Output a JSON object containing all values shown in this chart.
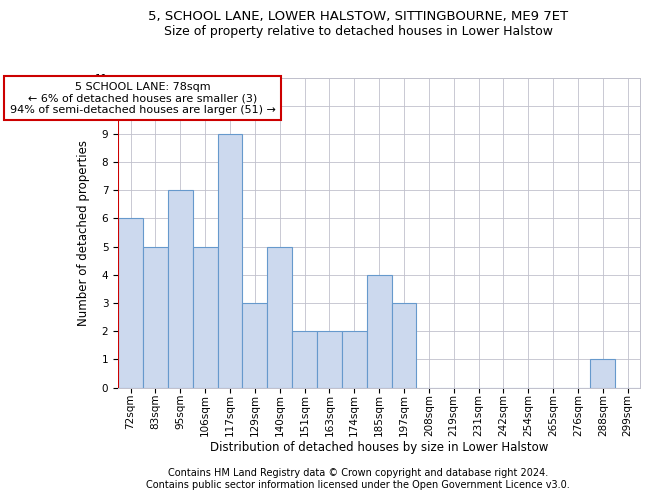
{
  "title1": "5, SCHOOL LANE, LOWER HALSTOW, SITTINGBOURNE, ME9 7ET",
  "title2": "Size of property relative to detached houses in Lower Halstow",
  "xlabel": "Distribution of detached houses by size in Lower Halstow",
  "ylabel": "Number of detached properties",
  "categories": [
    "72sqm",
    "83sqm",
    "95sqm",
    "106sqm",
    "117sqm",
    "129sqm",
    "140sqm",
    "151sqm",
    "163sqm",
    "174sqm",
    "185sqm",
    "197sqm",
    "208sqm",
    "219sqm",
    "231sqm",
    "242sqm",
    "254sqm",
    "265sqm",
    "276sqm",
    "288sqm",
    "299sqm"
  ],
  "values": [
    6,
    5,
    7,
    5,
    9,
    3,
    5,
    2,
    2,
    2,
    4,
    3,
    0,
    0,
    0,
    0,
    0,
    0,
    0,
    1,
    0
  ],
  "bar_color": "#ccd9ee",
  "bar_edge_color": "#6699cc",
  "highlight_line_color": "#cc0000",
  "annotation_line1": "5 SCHOOL LANE: 78sqm",
  "annotation_line2": "← 6% of detached houses are smaller (3)",
  "annotation_line3": "94% of semi-detached houses are larger (51) →",
  "annotation_box_color": "#cc0000",
  "ylim": [
    0,
    11
  ],
  "yticks": [
    0,
    1,
    2,
    3,
    4,
    5,
    6,
    7,
    8,
    9,
    10,
    11
  ],
  "grid_color": "#c0c0cc",
  "background_color": "#ffffff",
  "footnote1": "Contains HM Land Registry data © Crown copyright and database right 2024.",
  "footnote2": "Contains public sector information licensed under the Open Government Licence v3.0.",
  "title1_fontsize": 9.5,
  "title2_fontsize": 9,
  "xlabel_fontsize": 8.5,
  "ylabel_fontsize": 8.5,
  "tick_fontsize": 7.5,
  "annotation_fontsize": 8,
  "footnote_fontsize": 7
}
